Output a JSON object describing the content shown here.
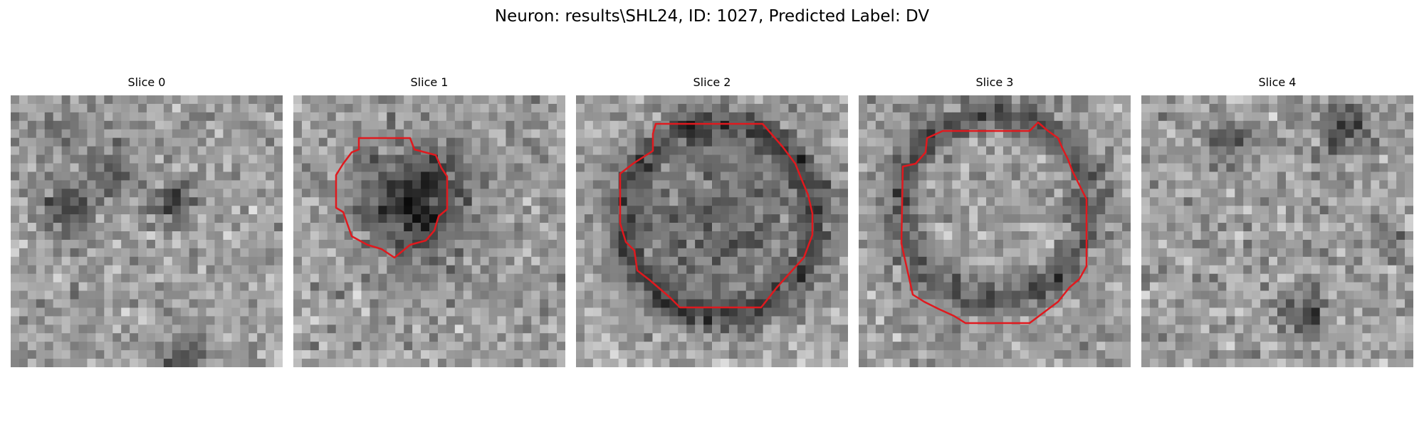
{
  "figure": {
    "title": "Neuron: results\\SHL24, ID: 1027, Predicted Label: DV"
  },
  "panels": [
    {
      "title": "Slice 0",
      "has_contour": false
    },
    {
      "title": "Slice 1",
      "has_contour": true
    },
    {
      "title": "Slice 2",
      "has_contour": true
    },
    {
      "title": "Slice 3",
      "has_contour": true
    },
    {
      "title": "Slice 4",
      "has_contour": false
    }
  ],
  "style": {
    "contour_color": "#e0191e",
    "image_colormap": "grayscale"
  }
}
